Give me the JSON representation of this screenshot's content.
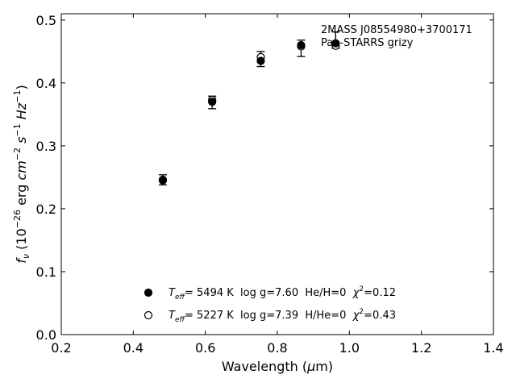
{
  "chart_data": {
    "type": "scatter",
    "title": "",
    "xlabel": "Wavelength (μm)",
    "ylabel": "f_ν (10^-26 erg cm^-2 s^-1 Hz^-1)",
    "xlim": [
      0.2,
      1.4
    ],
    "ylim": [
      0.0,
      0.51
    ],
    "xticks": [
      "0.2",
      "0.4",
      "0.6",
      "0.8",
      "1.0",
      "1.2",
      "1.4"
    ],
    "yticks": [
      "0.0",
      "0.1",
      "0.2",
      "0.3",
      "0.4",
      "0.5"
    ],
    "grid": false,
    "annotation": {
      "line1": "2MASS J08554980+3700171",
      "line2": "Pan-STARRS grizy"
    },
    "observed": {
      "x": [
        0.482,
        0.619,
        0.754,
        0.866,
        0.962
      ],
      "y": [
        0.246,
        0.369,
        0.438,
        0.455,
        0.468
      ],
      "err": [
        0.008,
        0.01,
        0.012,
        0.013,
        0.013
      ]
    },
    "series": [
      {
        "name": "T_eff= 5494 K log g=7.60 He/H=0 χ²=0.12",
        "marker": "filled-circle",
        "x": [
          0.482,
          0.619,
          0.754,
          0.866,
          0.962
        ],
        "y": [
          0.245,
          0.37,
          0.435,
          0.46,
          0.463
        ]
      },
      {
        "name": "T_eff= 5227 K log g=7.39 H/He=0 χ²=0.43",
        "marker": "open-circle",
        "x": [
          0.482,
          0.619,
          0.754,
          0.866,
          0.962
        ],
        "y": [
          0.246,
          0.373,
          0.441,
          0.458,
          0.459
        ]
      }
    ],
    "legend": {
      "placement": "bottom-center",
      "entries": [
        {
          "teff_value": "=  5494 K",
          "rest": "  log g=7.60  He/H=0  ",
          "chi_value": "=0.12"
        },
        {
          "teff_value": "=  5227 K",
          "rest": "  log g=7.39  H/He=0  ",
          "chi_value": "=0.43"
        }
      ]
    }
  }
}
